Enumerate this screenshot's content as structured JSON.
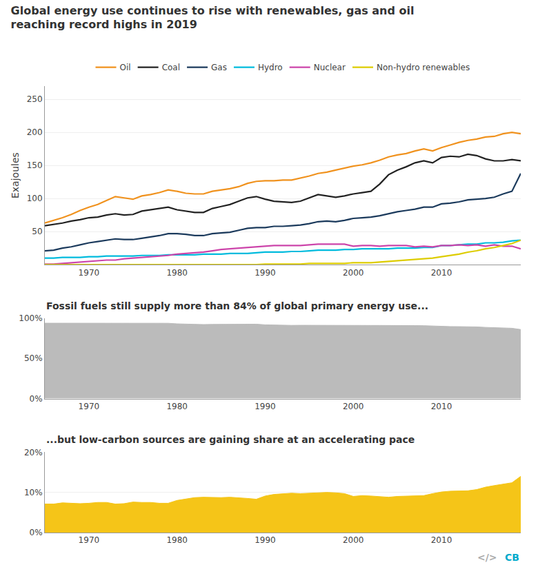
{
  "chart_data": [
    {
      "type": "line",
      "title": "Global energy use continues to rise with renewables, gas and oil reaching record highs in 2019",
      "x": [
        1965,
        1966,
        1967,
        1968,
        1969,
        1970,
        1971,
        1972,
        1973,
        1974,
        1975,
        1976,
        1977,
        1978,
        1979,
        1980,
        1981,
        1982,
        1983,
        1984,
        1985,
        1986,
        1987,
        1988,
        1989,
        1990,
        1991,
        1992,
        1993,
        1994,
        1995,
        1996,
        1997,
        1998,
        1999,
        2000,
        2001,
        2002,
        2003,
        2004,
        2005,
        2006,
        2007,
        2008,
        2009,
        2010,
        2011,
        2012,
        2013,
        2014,
        2015,
        2016,
        2017,
        2018,
        2019
      ],
      "series": [
        {
          "name": "Oil",
          "color": "#F0921E",
          "values": [
            63,
            67,
            71,
            76,
            82,
            87,
            91,
            97,
            103,
            101,
            99,
            104,
            106,
            109,
            113,
            111,
            108,
            107,
            107,
            111,
            113,
            115,
            118,
            123,
            126,
            127,
            127,
            128,
            128,
            131,
            134,
            138,
            140,
            143,
            146,
            149,
            151,
            154,
            158,
            163,
            166,
            168,
            172,
            175,
            172,
            177,
            181,
            185,
            188,
            190,
            193,
            194,
            198,
            200,
            198
          ]
        },
        {
          "name": "Coal",
          "color": "#222222",
          "values": [
            59,
            61,
            63,
            66,
            68,
            71,
            72,
            75,
            77,
            75,
            76,
            81,
            83,
            85,
            87,
            83,
            81,
            79,
            79,
            85,
            88,
            91,
            96,
            101,
            103,
            99,
            96,
            95,
            94,
            96,
            101,
            106,
            104,
            102,
            104,
            107,
            109,
            111,
            122,
            136,
            143,
            148,
            154,
            157,
            154,
            162,
            164,
            163,
            167,
            165,
            160,
            157,
            157,
            159,
            157
          ]
        },
        {
          "name": "Gas",
          "color": "#1B3A5C",
          "values": [
            21,
            22,
            25,
            27,
            30,
            33,
            35,
            37,
            39,
            38,
            38,
            40,
            42,
            44,
            47,
            47,
            46,
            44,
            44,
            47,
            48,
            49,
            52,
            55,
            56,
            56,
            58,
            58,
            59,
            60,
            62,
            65,
            66,
            65,
            67,
            70,
            71,
            72,
            74,
            77,
            80,
            82,
            84,
            87,
            87,
            92,
            93,
            95,
            98,
            99,
            100,
            102,
            107,
            111,
            138
          ]
        },
        {
          "name": "Hydro",
          "color": "#00BBDD",
          "values": [
            10,
            10,
            11,
            11,
            11,
            12,
            12,
            13,
            13,
            13,
            13,
            14,
            14,
            14,
            15,
            15,
            15,
            15,
            16,
            16,
            16,
            17,
            17,
            17,
            18,
            19,
            19,
            19,
            20,
            20,
            21,
            22,
            22,
            22,
            23,
            23,
            24,
            24,
            24,
            24,
            25,
            25,
            25,
            26,
            26,
            29,
            29,
            30,
            31,
            31,
            33,
            33,
            34,
            36,
            37
          ]
        },
        {
          "name": "Nuclear",
          "color": "#CC44AA",
          "values": [
            1,
            1,
            2,
            3,
            4,
            5,
            6,
            7,
            7,
            9,
            10,
            11,
            12,
            13,
            14,
            16,
            17,
            18,
            19,
            21,
            23,
            24,
            25,
            26,
            27,
            28,
            29,
            29,
            29,
            29,
            30,
            31,
            31,
            31,
            31,
            28,
            29,
            29,
            28,
            29,
            29,
            29,
            27,
            28,
            27,
            29,
            29,
            30,
            29,
            30,
            28,
            30,
            28,
            28,
            24
          ]
        },
        {
          "name": "Non-hydro renewables",
          "color": "#DDCC00",
          "values": [
            0,
            0,
            0,
            0,
            0,
            0,
            0,
            0,
            0,
            0,
            0,
            0,
            0,
            0,
            0,
            0,
            0,
            0,
            0,
            0,
            0,
            0,
            0,
            0,
            0,
            1,
            1,
            1,
            1,
            1,
            2,
            2,
            2,
            2,
            2,
            3,
            3,
            3,
            4,
            5,
            6,
            7,
            8,
            9,
            10,
            12,
            14,
            16,
            19,
            21,
            24,
            26,
            29,
            32,
            37
          ]
        }
      ],
      "xlim": [
        1965,
        2019
      ],
      "xticks": [
        1970,
        1980,
        1990,
        2000,
        2010
      ],
      "ylim": [
        0,
        270
      ],
      "yticks": [
        50,
        100,
        150,
        200,
        250
      ],
      "ylabel": "Exajoules",
      "grid": true,
      "legend": "top"
    },
    {
      "type": "area",
      "title": "Fossil fuels still supply more than 84% of global primary energy use...",
      "x": [
        1965,
        1966,
        1967,
        1968,
        1969,
        1970,
        1971,
        1972,
        1973,
        1974,
        1975,
        1976,
        1977,
        1978,
        1979,
        1980,
        1981,
        1982,
        1983,
        1984,
        1985,
        1986,
        1987,
        1988,
        1989,
        1990,
        1991,
        1992,
        1993,
        1994,
        1995,
        1996,
        1997,
        1998,
        1999,
        2000,
        2001,
        2002,
        2003,
        2004,
        2005,
        2006,
        2007,
        2008,
        2009,
        2010,
        2011,
        2012,
        2013,
        2014,
        2015,
        2016,
        2017,
        2018,
        2019
      ],
      "values": [
        93.9,
        93.9,
        93.7,
        93.8,
        93.9,
        93.8,
        93.7,
        93.7,
        93.8,
        93.7,
        93.5,
        93.6,
        93.6,
        93.8,
        93.8,
        93.1,
        92.7,
        92.4,
        92.2,
        92.4,
        92.4,
        92.3,
        92.4,
        92.6,
        92.7,
        91.9,
        91.5,
        91.4,
        91.2,
        91.3,
        91.2,
        91.3,
        91.1,
        91.2,
        91.3,
        91.2,
        91.0,
        91.1,
        91.1,
        91.2,
        91.0,
        90.9,
        90.9,
        90.8,
        90.3,
        90.0,
        89.7,
        89.6,
        89.6,
        89.3,
        88.7,
        88.3,
        87.9,
        87.6,
        86.0
      ],
      "color": "#BBBBBB",
      "xlim": [
        1965,
        2019
      ],
      "xticks": [
        1970,
        1980,
        1990,
        2000,
        2010
      ],
      "ylim": [
        0,
        100
      ],
      "yticks": [
        {
          "value": 0,
          "label": "0%"
        },
        {
          "value": 50,
          "label": "50%"
        },
        {
          "value": 100,
          "label": "100%"
        }
      ],
      "grid": true
    },
    {
      "type": "area",
      "title": "...but low-carbon sources are gaining share at an accelerating pace",
      "x": [
        1965,
        1966,
        1967,
        1968,
        1969,
        1970,
        1971,
        1972,
        1973,
        1974,
        1975,
        1976,
        1977,
        1978,
        1979,
        1980,
        1981,
        1982,
        1983,
        1984,
        1985,
        1986,
        1987,
        1988,
        1989,
        1990,
        1991,
        1992,
        1993,
        1994,
        1995,
        1996,
        1997,
        1998,
        1999,
        2000,
        2001,
        2002,
        2003,
        2004,
        2005,
        2006,
        2007,
        2008,
        2009,
        2010,
        2011,
        2012,
        2013,
        2014,
        2015,
        2016,
        2017,
        2018,
        2019
      ],
      "values": [
        7.1,
        7.1,
        7.4,
        7.3,
        7.2,
        7.3,
        7.5,
        7.5,
        7.1,
        7.2,
        7.6,
        7.5,
        7.5,
        7.3,
        7.3,
        8.0,
        8.4,
        8.7,
        8.8,
        8.7,
        8.7,
        8.8,
        8.7,
        8.5,
        8.3,
        9.1,
        9.5,
        9.6,
        9.8,
        9.7,
        9.8,
        9.9,
        10.0,
        9.9,
        9.7,
        9.0,
        9.2,
        9.1,
        8.9,
        8.8,
        9.0,
        9.1,
        9.2,
        9.2,
        9.7,
        10.1,
        10.3,
        10.4,
        10.4,
        10.7,
        11.3,
        11.7,
        12.1,
        12.4,
        14.0
      ],
      "color": "#F5C518",
      "xlim": [
        1965,
        2019
      ],
      "xticks": [
        1970,
        1980,
        1990,
        2000,
        2010
      ],
      "ylim": [
        0,
        20
      ],
      "yticks": [
        {
          "value": 0,
          "label": "0%"
        },
        {
          "value": 10,
          "label": "10%"
        },
        {
          "value": 20,
          "label": "20%"
        }
      ],
      "grid": true,
      "annotations": [
        "CB",
        "</>"
      ]
    }
  ]
}
